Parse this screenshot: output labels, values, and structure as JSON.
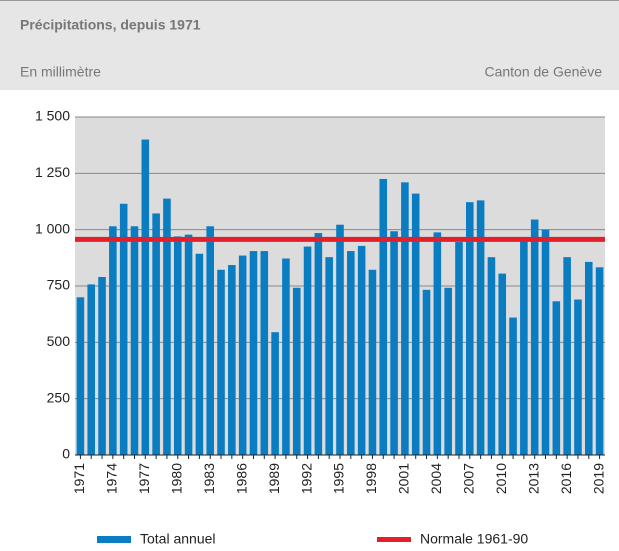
{
  "chart_data": {
    "type": "bar",
    "title": "Précipitations, depuis 1971",
    "subtitle": "En millimètre",
    "region": "Canton de Genève",
    "categories": [
      "1971",
      null,
      null,
      "1974",
      null,
      null,
      "1977",
      null,
      null,
      "1980",
      null,
      null,
      "1983",
      null,
      null,
      "1986",
      null,
      null,
      "1989",
      null,
      null,
      "1992",
      null,
      null,
      "1995",
      null,
      null,
      "1998",
      null,
      null,
      "2001",
      null,
      null,
      "2004",
      null,
      null,
      "2007",
      null,
      null,
      "2010",
      null,
      null,
      "2013",
      null,
      null,
      "2016",
      null,
      null,
      "2019"
    ],
    "series": [
      {
        "name": "Total annuel",
        "color": "#0a7cc1",
        "values": [
          700,
          757,
          790,
          1015,
          1115,
          1015,
          1400,
          1072,
          1138,
          970,
          978,
          893,
          1015,
          822,
          843,
          885,
          905,
          905,
          545,
          872,
          742,
          925,
          985,
          878,
          1022,
          905,
          928,
          822,
          1225,
          993,
          1210,
          1160,
          733,
          988,
          742,
          945,
          1122,
          1130,
          878,
          805,
          610,
          950,
          1045,
          1000,
          682,
          878,
          690,
          857,
          833
        ]
      }
    ],
    "reference_line": {
      "name": "Normale 1961-90",
      "color": "#e3202a",
      "value": 957
    },
    "ylim": [
      0,
      1500
    ],
    "yticks": [
      0,
      250,
      500,
      750,
      {
        "value": 1000,
        "label": "1 000"
      },
      {
        "value": 1250,
        "label": "1 250"
      },
      {
        "value": 1500,
        "label": "1 500"
      }
    ],
    "grid": true
  }
}
